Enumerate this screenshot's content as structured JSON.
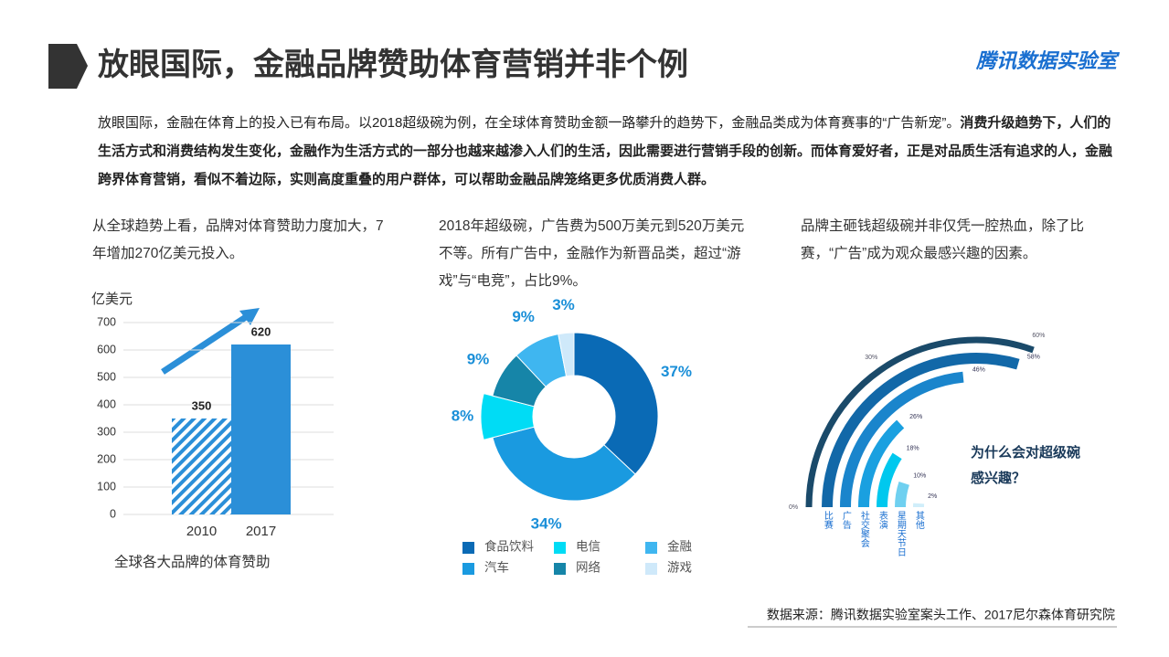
{
  "header": {
    "title": "放眼国际，金融品牌赞助体育营销并非个例",
    "brand": "腾讯数据实验室"
  },
  "intro": {
    "normal": "放眼国际，金融在体育上的投入已有布局。以2018超级碗为例，在全球体育赞助金额一路攀升的趋势下，金融品类成为体育赛事的“广告新宠”。",
    "bold": "消费升级趋势下，人们的生活方式和消费结构发生变化，金融作为生活方式的一部分也越来越渗入人们的生活，因此需要进行营销手段的创新。而体育爱好者，正是对品质生活有追求的人，金融跨界体育营销，看似不着边际，实则高度重叠的用户群体，可以帮助金融品牌笼络更多优质消费人群。"
  },
  "captions": [
    "从全球趋势上看，品牌对体育赞助力度加大，7年增加270亿美元投入。",
    "2018年超级碗，广告费为500万美元到520万美元不等。所有广告中，金融作为新晋品类，超过“游戏”与“电竞”，占比9%。",
    "品牌主砸钱超级碗并非仅凭一腔热血，除了比赛，“广告”成为观众最感兴趣的因素。"
  ],
  "chart_data": [
    {
      "type": "bar",
      "ylabel": "亿美元",
      "caption": "全球各大品牌的体育赞助",
      "categories": [
        "2010",
        "2017"
      ],
      "values": [
        350,
        620
      ],
      "colors": [
        "#2b8fd8",
        "#2b8fd8"
      ],
      "hatched": [
        true,
        false
      ],
      "ylim": [
        0,
        700
      ],
      "yticks": [
        0,
        100,
        200,
        300,
        400,
        500,
        600,
        700
      ],
      "grid": true
    },
    {
      "type": "donut",
      "categories": [
        "食品饮料",
        "汽车",
        "电信",
        "网络",
        "金融",
        "游戏"
      ],
      "values": [
        37,
        34,
        8,
        9,
        9,
        3
      ],
      "value_labels": [
        "37%",
        "34%",
        "8%",
        "9%",
        "9%",
        "3%"
      ],
      "colors": [
        "#0a6ab5",
        "#1a9ae0",
        "#00dcf5",
        "#1685a8",
        "#3fb6f0",
        "#cfe9fa"
      ]
    },
    {
      "type": "radial_bar",
      "title": "为什么会对超级碗感兴趣？",
      "categories": [
        "比赛",
        "广告",
        "社交聚会",
        "表演",
        "星期天节日",
        "其他"
      ],
      "values": [
        58,
        46,
        26,
        18,
        10,
        2
      ],
      "value_labels": [
        "58%",
        "46%",
        "26%",
        "18%",
        "10%",
        "2%"
      ],
      "colors": [
        "#1268a8",
        "#1a85cc",
        "#1aa0e0",
        "#00c8ee",
        "#6fd0f0",
        "#d0eefa"
      ],
      "xlim": [
        0,
        60
      ],
      "xticks": [
        {
          "value": 0,
          "label": "0%"
        },
        {
          "value": 30,
          "label": "30%"
        },
        {
          "value": 60,
          "label": "60%"
        }
      ]
    }
  ],
  "source": "数据来源：腾讯数据实验室案头工作、2017尼尔森体育研究院"
}
